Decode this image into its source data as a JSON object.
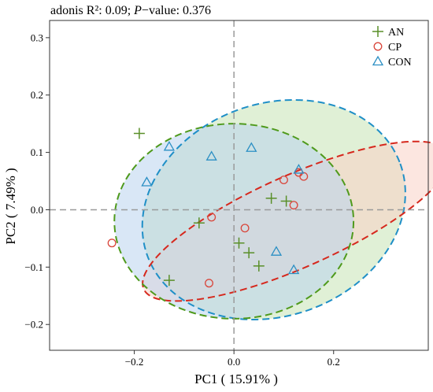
{
  "chart_data": {
    "type": "scatter",
    "title_parts": {
      "prefix": "adonis R²: 0.09; ",
      "p_italic": "P",
      "suffix": "−value: 0.376"
    },
    "xlabel": "PC1 ( 15.91% )",
    "ylabel": "PC2 ( 7.49% )",
    "xlim": [
      -0.37,
      0.39
    ],
    "ylim": [
      -0.245,
      0.33
    ],
    "xticks": [
      -0.2,
      0.0,
      0.2
    ],
    "xtick_labels": [
      "−0.2",
      "0.0",
      "0.2"
    ],
    "yticks": [
      -0.2,
      -0.1,
      0.0,
      0.1,
      0.2,
      0.3
    ],
    "ytick_labels": [
      "−0.2",
      "−0.1",
      "0.0",
      "0.1",
      "0.2",
      "0.3"
    ],
    "grid": false,
    "reference_lines": {
      "x": 0,
      "y": 0
    },
    "legend_placement": "top-right",
    "series": [
      {
        "name": "AN",
        "marker": "plus",
        "color": "#5a8f29",
        "fill": "#c7e3b5",
        "points": [
          [
            -0.19,
            0.133
          ],
          [
            -0.07,
            -0.023
          ],
          [
            -0.13,
            -0.123
          ],
          [
            0.01,
            -0.058
          ],
          [
            0.03,
            -0.075
          ],
          [
            0.05,
            -0.098
          ],
          [
            0.075,
            0.02
          ],
          [
            0.105,
            0.015
          ]
        ],
        "ellipse": {
          "center": [
            0.08,
            0.0
          ],
          "rx": 0.27,
          "ry": 0.185,
          "angle": 20,
          "stroke": "#1f8fc7"
        }
      },
      {
        "name": "CP",
        "marker": "circle",
        "color": "#d9453a",
        "fill": "#fad1c6",
        "points": [
          [
            -0.245,
            -0.058
          ],
          [
            -0.045,
            -0.013
          ],
          [
            -0.05,
            -0.128
          ],
          [
            0.022,
            -0.032
          ],
          [
            0.1,
            0.052
          ],
          [
            0.12,
            0.008
          ],
          [
            0.13,
            0.065
          ],
          [
            0.14,
            0.058
          ]
        ],
        "ellipse": {
          "center": [
            0.125,
            -0.02
          ],
          "rx": 0.335,
          "ry": 0.08,
          "angle": 24,
          "stroke": "#d6281d"
        }
      },
      {
        "name": "CON",
        "marker": "triangle",
        "color": "#2b8fc4",
        "fill": "#b9d4ef",
        "points": [
          [
            -0.13,
            0.11
          ],
          [
            -0.175,
            0.048
          ],
          [
            -0.045,
            0.093
          ],
          [
            0.035,
            0.108
          ],
          [
            0.085,
            -0.073
          ],
          [
            0.13,
            0.07
          ],
          [
            0.12,
            -0.105
          ]
        ],
        "ellipse": {
          "center": [
            0.0,
            -0.02
          ],
          "rx": 0.24,
          "ry": 0.17,
          "angle": 0,
          "stroke": "#4f9a1c"
        }
      }
    ]
  }
}
